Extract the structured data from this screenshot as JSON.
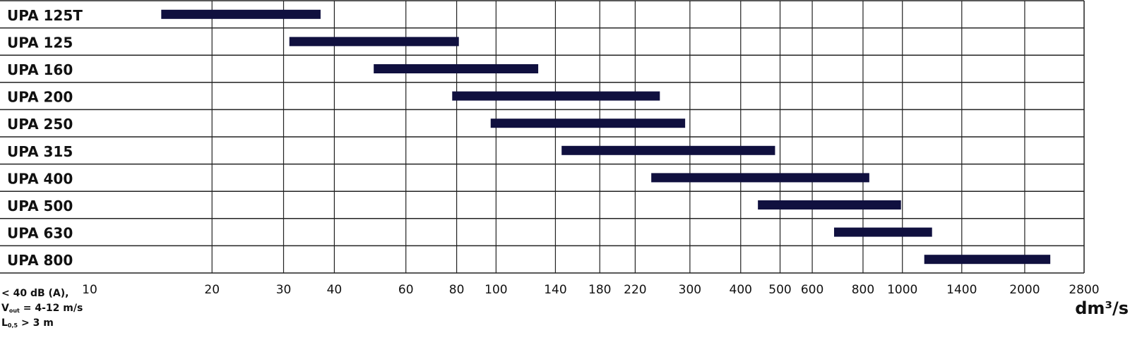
{
  "chart_data": {
    "type": "range-bar",
    "categories": [
      "UPA 125T",
      "UPA 125",
      "UPA 160",
      "UPA 200",
      "UPA 250",
      "UPA 315",
      "UPA 400",
      "UPA 500",
      "UPA 630",
      "UPA 800"
    ],
    "starts": [
      15,
      31,
      50,
      78,
      97,
      145,
      241,
      441,
      679,
      1132
    ],
    "ends": [
      37,
      81,
      127,
      253,
      292,
      486,
      829,
      992,
      1183,
      2312
    ],
    "color": "#10103f",
    "xscale": "log",
    "xlim": [
      10,
      2800
    ],
    "xticks": [
      10,
      20,
      30,
      40,
      60,
      80,
      100,
      140,
      180,
      220,
      300,
      400,
      500,
      600,
      800,
      1000,
      1400,
      2000,
      2800
    ],
    "grid": true,
    "xlabel": "dm³/s",
    "notes": [
      {
        "text": "< 40 dB (A),"
      },
      {
        "text": "V",
        "sub": "out",
        "tail": " = 4-12 m/s"
      },
      {
        "text": "L",
        "sub": "0,5",
        "tail": " > 3 m"
      }
    ]
  }
}
